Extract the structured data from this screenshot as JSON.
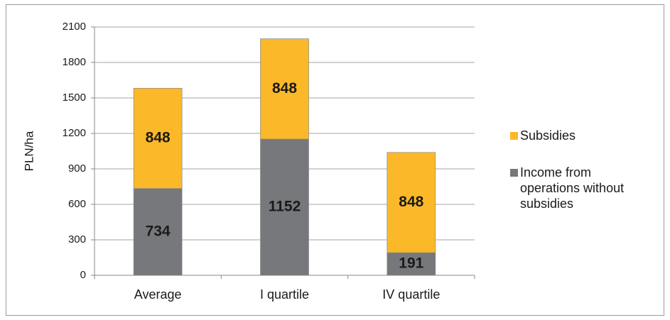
{
  "chart_data": {
    "type": "stacked_bar",
    "y_label": "PLN/ha",
    "categories": [
      "Average",
      "I quartile",
      "IV quartile"
    ],
    "series": [
      {
        "name": "Income from operations without subsidies",
        "color": "#77787b",
        "values": [
          734,
          1152,
          191
        ]
      },
      {
        "name": "Subsidies",
        "color": "#fbb829",
        "values": [
          848,
          848,
          848
        ]
      }
    ],
    "ylim": [
      0,
      2100
    ],
    "yticks": [
      0,
      300,
      600,
      900,
      1200,
      1500,
      1800,
      2100
    ],
    "grid": true
  }
}
